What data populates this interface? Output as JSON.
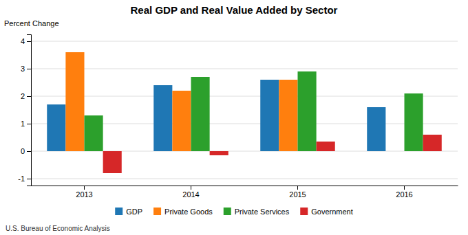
{
  "chart_data": {
    "type": "bar",
    "title": "Real GDP and Real Value Added by Sector",
    "y_label": "Percent Change",
    "annotations": [
      "U.S. Bureau of Economic Analysis"
    ],
    "categories": [
      "2013",
      "2014",
      "2015",
      "2016"
    ],
    "series": [
      {
        "name": "GDP",
        "values": [
          1.7,
          2.4,
          2.6,
          1.6
        ]
      },
      {
        "name": "Private Goods",
        "values": [
          3.6,
          2.2,
          2.6,
          null
        ]
      },
      {
        "name": "Private Services",
        "values": [
          1.3,
          2.7,
          2.9,
          2.1
        ]
      },
      {
        "name": "Government",
        "values": [
          -0.8,
          -0.15,
          0.35,
          0.6
        ]
      }
    ],
    "ylim": [
      -1.25,
      4.25
    ],
    "yticks": [
      -1,
      0,
      1,
      2,
      3,
      4
    ],
    "grid": true,
    "legend": "bottom"
  }
}
